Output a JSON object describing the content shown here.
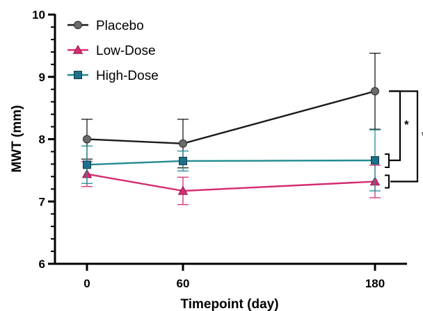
{
  "chart_data": {
    "type": "line",
    "title": "",
    "xlabel": "Timepoint (day)",
    "ylabel": "MWT (mm)",
    "x": [
      0,
      60,
      180
    ],
    "xlim": [
      -20,
      200
    ],
    "ylim": [
      6,
      10
    ],
    "xticks": [
      0,
      60,
      180
    ],
    "yticks": [
      6,
      7,
      8,
      9,
      10
    ],
    "grid": false,
    "legend_position": "top-left",
    "series": [
      {
        "name": "Placebo",
        "color": "#1a1a1a",
        "marker_color": "#6b6b6b",
        "marker": "circle",
        "values": [
          8.0,
          7.93,
          8.77
        ],
        "error": [
          0.32,
          0.39,
          0.61
        ]
      },
      {
        "name": "Low-Dose",
        "color": "#d62b73",
        "marker_color": "#d62b73",
        "marker": "triangle",
        "values": [
          7.44,
          7.17,
          7.32
        ],
        "error": [
          0.2,
          0.22,
          0.26
        ]
      },
      {
        "name": "High-Dose",
        "color": "#1f8b91",
        "marker_color": "#1f6f8b",
        "marker": "square",
        "values": [
          7.59,
          7.65,
          7.66
        ],
        "error": [
          0.3,
          0.16,
          0.49
        ]
      }
    ],
    "annotations": [
      {
        "label": "*",
        "from_series": "Placebo",
        "to_series": "High-Dose",
        "x": 180
      },
      {
        "label": "**",
        "from_series": "Placebo",
        "to_series": "Low-Dose",
        "x": 180
      }
    ]
  }
}
